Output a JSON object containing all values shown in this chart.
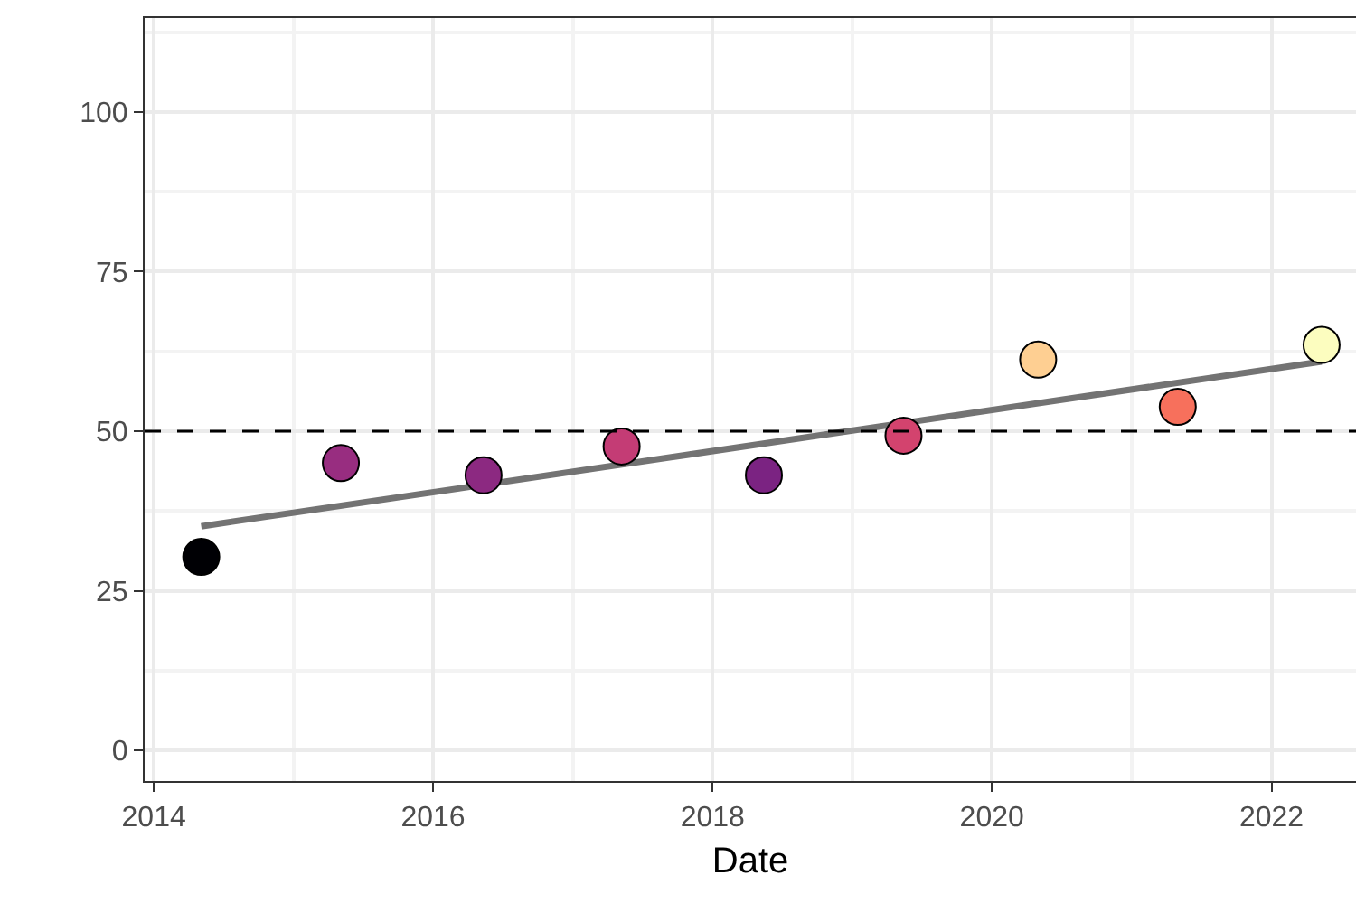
{
  "chart_data": {
    "type": "scatter",
    "xlabel": "Date",
    "marker": "circle",
    "grid": true,
    "xlim": [
      "2013-12-08",
      "2022-08-10"
    ],
    "xticks": [
      "2014",
      "2016",
      "2018",
      "2020",
      "2022"
    ],
    "ylim": [
      -4.8,
      114.7
    ],
    "yticks": [
      0,
      25,
      50,
      75,
      100
    ],
    "series": [
      {
        "x": [
          "2014-05-05",
          "2015-05-05",
          "2016-05-12",
          "2017-05-08",
          "2018-05-15",
          "2019-05-15",
          "2020-05-01",
          "2021-05-01",
          "2022-05-12"
        ],
        "values": [
          30.3,
          45.0,
          43.1,
          47.6,
          43.1,
          49.3,
          61.2,
          53.8,
          63.5
        ],
        "colors": [
          "#000004",
          "#982d80",
          "#8c2981",
          "#c43c75",
          "#7b2382",
          "#d3436e",
          "#fecf92",
          "#f7705c",
          "#fcfdbf"
        ]
      },
      {
        "type": "line",
        "x": [
          "2014-05-05",
          "2022-05-12"
        ],
        "values": [
          35.1,
          60.9
        ],
        "color": "#737373",
        "marker": "none"
      }
    ],
    "ref_lines": [
      {
        "axis": "y",
        "value": 50,
        "line_style": "dashed",
        "color": "#000000"
      }
    ]
  }
}
